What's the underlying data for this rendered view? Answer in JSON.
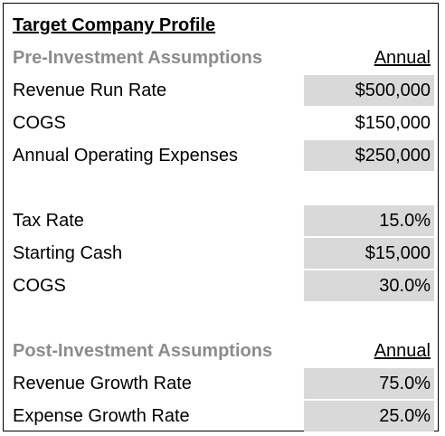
{
  "title": "Target Company Profile",
  "pre_investment": {
    "header": "Pre-Investment Assumptions",
    "column_header": "Annual",
    "rows": [
      {
        "label": "Revenue Run Rate",
        "value": "$500,000"
      },
      {
        "label": "COGS",
        "value": "$150,000"
      },
      {
        "label": "Annual Operating Expenses",
        "value": "$250,000"
      }
    ],
    "rows2": [
      {
        "label": "Tax Rate",
        "value": "15.0%"
      },
      {
        "label": "Starting Cash",
        "value": "$15,000"
      },
      {
        "label": "COGS",
        "value": "30.0%"
      }
    ]
  },
  "post_investment": {
    "header": "Post-Investment Assumptions",
    "column_header": "Annual",
    "rows": [
      {
        "label": "Revenue Growth Rate",
        "value": "75.0%"
      },
      {
        "label": "Expense Growth Rate",
        "value": "25.0%"
      }
    ]
  },
  "colors": {
    "section_header": "#8c8c8c",
    "shaded_cell": "#d9d9d9",
    "border": "#000000"
  }
}
